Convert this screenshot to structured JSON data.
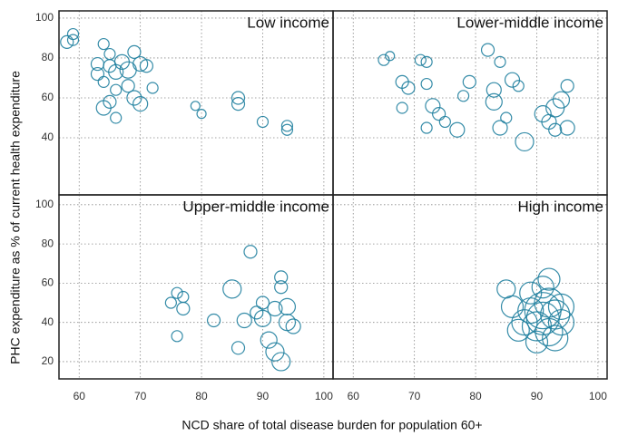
{
  "xlabel": "NCD share of total disease burden for population 60+",
  "ylabel": "PHC expenditure as % of current health expenditure",
  "chart_data": [
    {
      "type": "scatter",
      "title": "Low income",
      "color": "#1f7f9f",
      "grid": true,
      "xlim": [
        56.7,
        101.5
      ],
      "ylim": [
        11.4,
        103.6
      ],
      "xticks": [
        60,
        70,
        80,
        90,
        100
      ],
      "yticks": [
        40,
        60,
        80,
        100
      ],
      "x": [
        58,
        59,
        59,
        63,
        64,
        63,
        64,
        65,
        65,
        66,
        66,
        65,
        64,
        66,
        67,
        68,
        68,
        69,
        69,
        70,
        71,
        70,
        72,
        79,
        80,
        86,
        86,
        90,
        94,
        94
      ],
      "y": [
        88,
        92,
        89,
        77,
        87,
        72,
        68,
        82,
        76,
        73,
        64,
        58,
        55,
        50,
        78,
        74,
        66,
        60,
        83,
        77,
        76,
        57,
        65,
        56,
        52,
        60,
        57,
        48,
        46,
        44
      ],
      "sizes": [
        7,
        6,
        6,
        7,
        6,
        7,
        6,
        6,
        7,
        8,
        6,
        7,
        8,
        6,
        8,
        9,
        7,
        8,
        7,
        8,
        7,
        8,
        6,
        5,
        5,
        7,
        7,
        6,
        6,
        6
      ]
    },
    {
      "type": "scatter",
      "title": "Lower-middle income",
      "color": "#1f7f9f",
      "grid": true,
      "xlim": [
        56.7,
        101.5
      ],
      "ylim": [
        11.4,
        103.6
      ],
      "xticks": [
        60,
        70,
        80,
        90,
        100
      ],
      "yticks": [
        40,
        60,
        80,
        100
      ],
      "x": [
        65,
        66,
        68,
        69,
        68,
        71,
        72,
        72,
        73,
        72,
        74,
        75,
        77,
        78,
        79,
        82,
        83,
        83,
        84,
        84,
        85,
        86,
        87,
        88,
        91,
        92,
        93,
        94,
        95,
        95,
        93
      ],
      "y": [
        79,
        81,
        68,
        65,
        55,
        79,
        78,
        67,
        56,
        45,
        52,
        48,
        44,
        61,
        68,
        84,
        64,
        58,
        78,
        45,
        50,
        69,
        66,
        38,
        52,
        48,
        55,
        59,
        45,
        66,
        44
      ],
      "sizes": [
        6,
        5,
        7,
        7,
        6,
        6,
        6,
        6,
        8,
        6,
        7,
        6,
        8,
        6,
        7,
        7,
        8,
        9,
        6,
        8,
        6,
        8,
        6,
        10,
        9,
        8,
        10,
        9,
        8,
        7,
        7
      ]
    },
    {
      "type": "scatter",
      "title": "Upper-middle income",
      "color": "#1f7f9f",
      "grid": true,
      "xlim": [
        56.7,
        101.5
      ],
      "ylim": [
        11.2,
        105
      ],
      "xticks": [
        60,
        70,
        80,
        90,
        100
      ],
      "yticks": [
        20,
        40,
        60,
        80,
        100
      ],
      "x": [
        75,
        76,
        77,
        77,
        76,
        82,
        85,
        86,
        87,
        88,
        89,
        90,
        90,
        91,
        92,
        92,
        93,
        93,
        94,
        93,
        94,
        95
      ],
      "y": [
        50,
        55,
        53,
        47,
        33,
        41,
        57,
        27,
        41,
        76,
        45,
        42,
        50,
        31,
        25,
        47,
        63,
        58,
        48,
        20,
        40,
        38
      ],
      "sizes": [
        6,
        6,
        6,
        7,
        6,
        7,
        10,
        7,
        8,
        7,
        7,
        9,
        7,
        9,
        10,
        8,
        7,
        7,
        9,
        10,
        9,
        8
      ]
    },
    {
      "type": "scatter",
      "title": "High income",
      "color": "#1f7f9f",
      "grid": true,
      "xlim": [
        56.7,
        101.5
      ],
      "ylim": [
        11.2,
        105
      ],
      "xticks": [
        60,
        70,
        80,
        90,
        100
      ],
      "yticks": [
        20,
        40,
        60,
        80,
        100
      ],
      "x": [
        85,
        86,
        88,
        89,
        90,
        91,
        91,
        92,
        92,
        93,
        94,
        92,
        90,
        93,
        89,
        87,
        94,
        91
      ],
      "y": [
        57,
        48,
        40,
        46,
        38,
        42,
        58,
        35,
        50,
        44,
        40,
        62,
        30,
        32,
        55,
        36,
        48,
        46
      ],
      "sizes": [
        10,
        12,
        14,
        14,
        16,
        18,
        12,
        15,
        16,
        16,
        14,
        12,
        12,
        14,
        12,
        12,
        14,
        20
      ]
    }
  ]
}
